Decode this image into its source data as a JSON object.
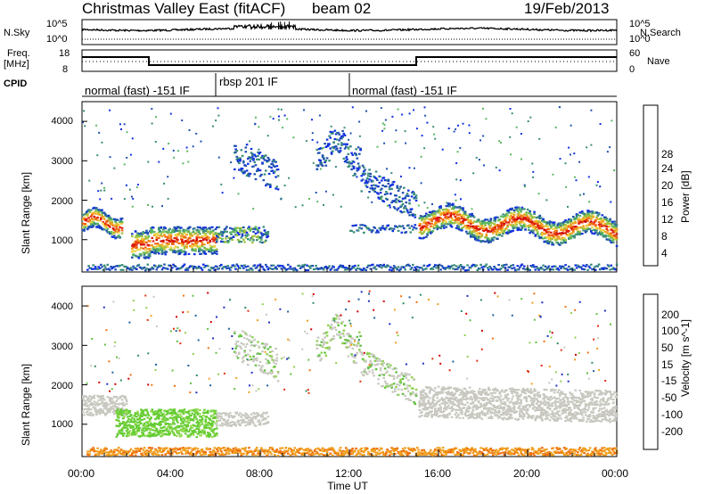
{
  "header": {
    "station": "Christmas Valley East (fitACF)",
    "beam": "beam 02",
    "date": "19/Feb/2013"
  },
  "side_labels": {
    "nsky": "N.Sky",
    "nsearch": "N.Search",
    "freq": "Freq.",
    "freq_unit": "[MHz]",
    "nave": "Nave",
    "cpid": "CPID"
  },
  "noise_panel": {
    "left_top": "10^5",
    "left_bottom": "10^0",
    "right_top": "10^5",
    "right_bottom": "10^0"
  },
  "freq_panel": {
    "left_top": "18",
    "left_bottom": "8",
    "right_top": "60",
    "right_bottom": "0"
  },
  "cpid_segments": [
    {
      "label": "normal (fast) -151 IF",
      "start_h": 0,
      "end_h": 6
    },
    {
      "label": "rbsp 201 IF",
      "start_h": 6,
      "end_h": 12
    },
    {
      "label": "normal (fast) -151 IF",
      "start_h": 12,
      "end_h": 24
    }
  ],
  "chart_data": [
    {
      "type": "heatmap",
      "title": "Power",
      "ylabel": "Slant Range [km]",
      "xlabel": "Time UT",
      "x_ticks": [
        "00:00",
        "04:00",
        "08:00",
        "12:00",
        "16:00",
        "20:00",
        "00:00"
      ],
      "y_ticks": [
        1000,
        2000,
        3000,
        4000
      ],
      "xlim_hours": [
        0,
        24
      ],
      "ylim": [
        180,
        4500
      ],
      "colorbar": {
        "label": "Power [dB]",
        "ticks": [
          "4",
          "8",
          "12",
          "16",
          "20",
          "24",
          "28"
        ],
        "colors": [
          "#1030e0",
          "#2050b0",
          "#3a8c7a",
          "#5cb860",
          "#a0c040",
          "#f0d040",
          "#f0a020",
          "#f06010",
          "#e02010",
          "#cc0000"
        ]
      }
    },
    {
      "type": "heatmap",
      "title": "Velocity",
      "ylabel": "Slant Range [km]",
      "xlabel": "Time UT",
      "x_ticks": [
        "00:00",
        "04:00",
        "08:00",
        "12:00",
        "16:00",
        "20:00",
        "00:00"
      ],
      "y_ticks": [
        1000,
        2000,
        3000,
        4000
      ],
      "xlim_hours": [
        0,
        24
      ],
      "ylim": [
        180,
        4500
      ],
      "colorbar": {
        "label": "Velocity [m s^-1]",
        "ticks": [
          "200",
          "100",
          "50",
          "15",
          "-15",
          "-50",
          "-100",
          "-200"
        ],
        "colors": [
          "#2030c0",
          "#2060a0",
          "#309060",
          "#60c040",
          "#90d050",
          "#c8c8c0",
          "#f0a020",
          "#f07010",
          "#e03010",
          "#d00000"
        ]
      }
    }
  ]
}
